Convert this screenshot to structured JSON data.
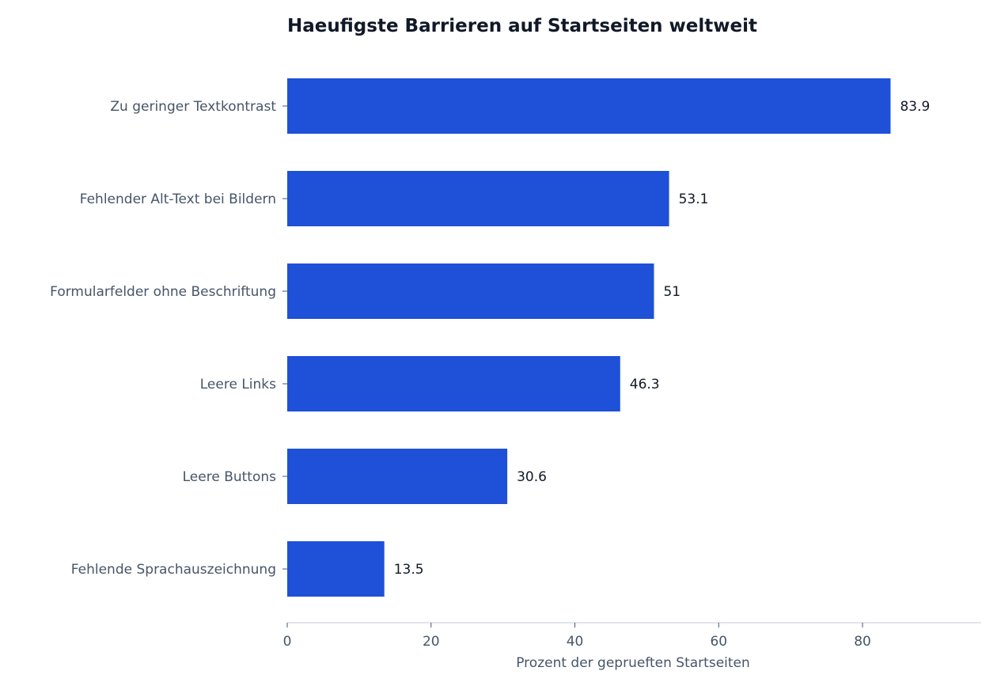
{
  "chart_data": {
    "type": "bar",
    "orientation": "horizontal",
    "title": "Haeufigste Barrieren auf Startseiten weltweit",
    "xlabel": "Prozent der geprueften Startseiten",
    "ylabel": "",
    "categories": [
      "Zu geringer Textkontrast",
      "Fehlender Alt-Text bei Bildern",
      "Formularfelder ohne Beschriftung",
      "Leere Links",
      "Leere Buttons",
      "Fehlende Sprachauszeichnung"
    ],
    "values": [
      83.9,
      53.1,
      51,
      46.3,
      30.6,
      13.5
    ],
    "value_labels": [
      "83.9",
      "53.1",
      "51",
      "46.3",
      "30.6",
      "13.5"
    ],
    "xlim": [
      0,
      96.5
    ],
    "xticks": [
      0,
      20,
      40,
      60,
      80
    ],
    "xtick_labels": [
      "0",
      "20",
      "40",
      "60",
      "80"
    ],
    "grid": false,
    "legend": "none",
    "colors": {
      "bar": "#1e50d8",
      "title": "#111827",
      "tick_label": "#475569",
      "value_label": "#111827",
      "axis": "#d8dce6"
    }
  }
}
